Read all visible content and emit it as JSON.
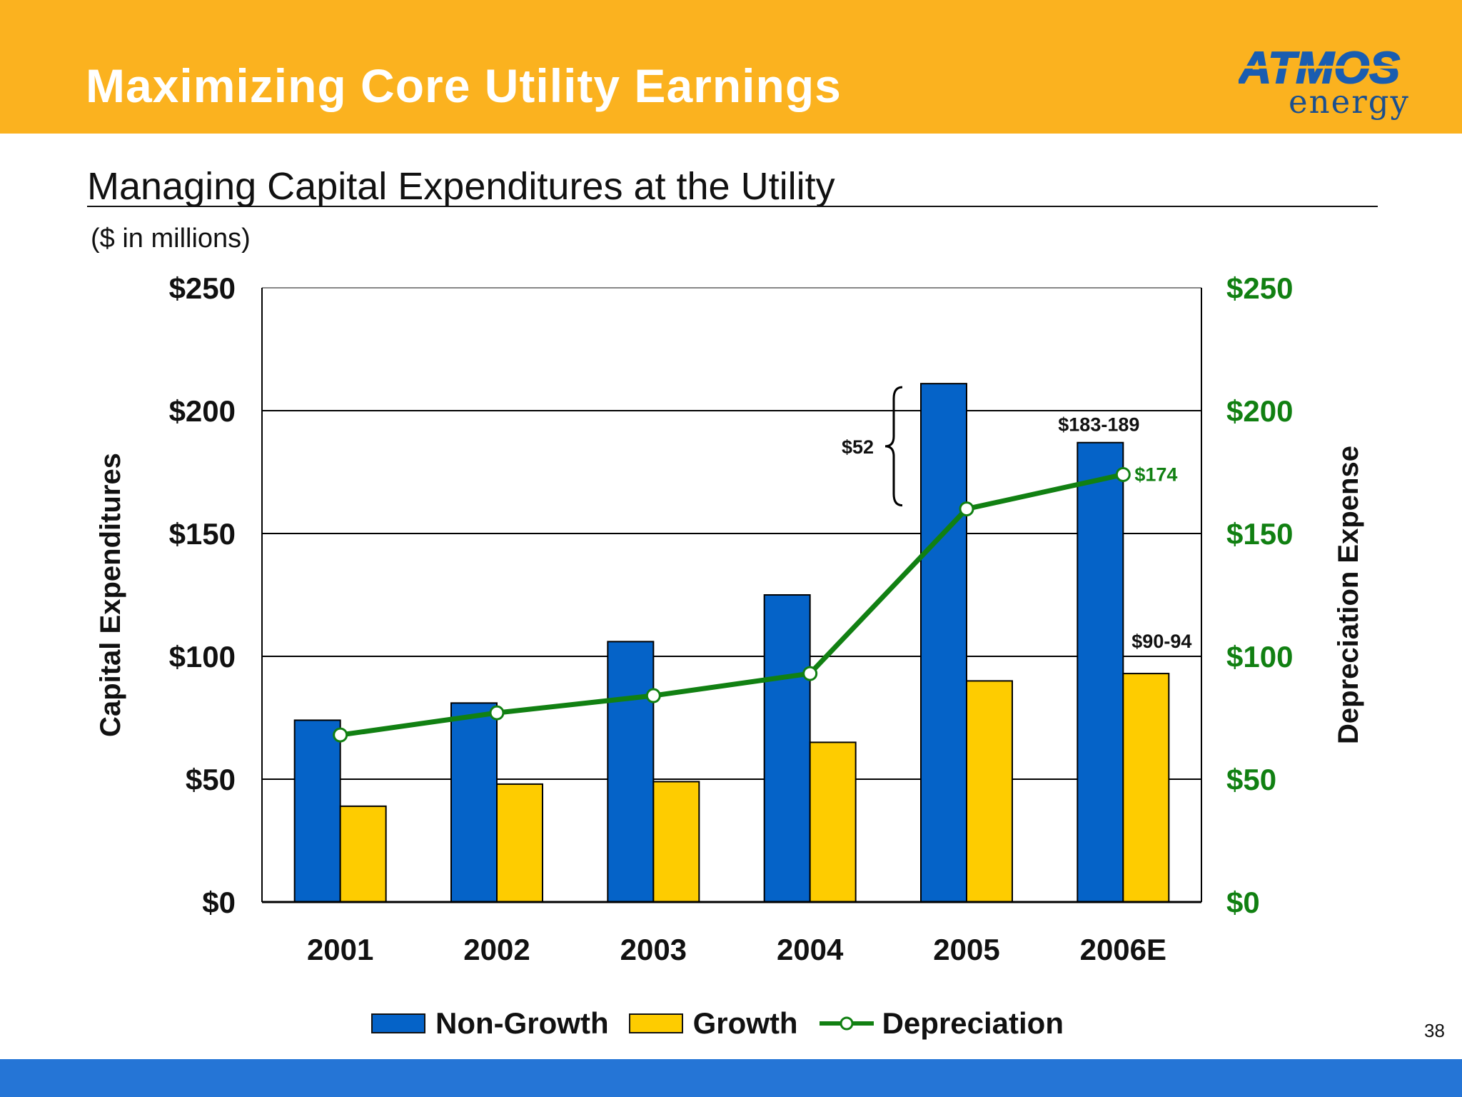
{
  "header": {
    "title": "Maximizing Core Utility Earnings",
    "logo_top": "ATMOS",
    "logo_bottom": "energy"
  },
  "subtitle": "Managing Capital Expenditures at the Utility",
  "units_note": "($ in millions)",
  "page_number": "38",
  "colors": {
    "header_band": "#FBB21F",
    "footer_band": "#2575D6",
    "non_growth": "#0563C8",
    "growth": "#FECC00",
    "depreciation": "#118012"
  },
  "chart_data": {
    "type": "bar",
    "categories": [
      "2001",
      "2002",
      "2003",
      "2004",
      "2005",
      "2006E"
    ],
    "series": [
      {
        "name": "Non-Growth",
        "type": "bar",
        "values": [
          74,
          81,
          106,
          125,
          211,
          187
        ]
      },
      {
        "name": "Growth",
        "type": "bar",
        "values": [
          39,
          48,
          49,
          65,
          90,
          93
        ]
      },
      {
        "name": "Depreciation",
        "type": "line",
        "axis": "right",
        "values": [
          68,
          77,
          84,
          93,
          160,
          174
        ]
      }
    ],
    "ylabel": "Capital Expenditures",
    "y2label": "Depreciation Expense",
    "ylim": [
      0,
      250
    ],
    "y2lim": [
      0,
      250
    ],
    "yticks": [
      0,
      50,
      100,
      150,
      200,
      250
    ],
    "ytick_labels": [
      "$0",
      "$50",
      "$100",
      "$150",
      "$200",
      "$250"
    ],
    "gridlines": true,
    "legend_position": "bottom",
    "annotations": [
      {
        "text": "$52",
        "type": "brace",
        "from": 160,
        "to": 211,
        "category": "2005"
      },
      {
        "text": "$183-189",
        "category": "2006E",
        "series": "Non-Growth"
      },
      {
        "text": "$174",
        "category": "2006E",
        "series": "Depreciation"
      },
      {
        "text": "$90-94",
        "category": "2006E",
        "series": "Growth"
      }
    ]
  }
}
